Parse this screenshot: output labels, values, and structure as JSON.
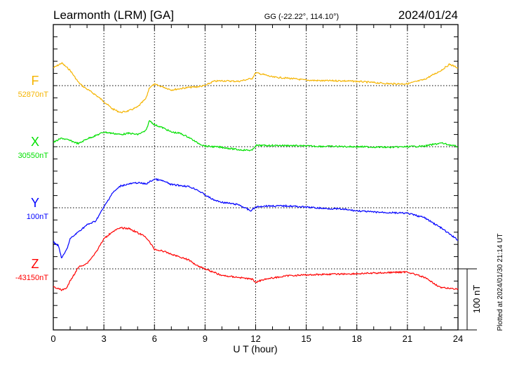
{
  "header": {
    "station": "Learmonth (LRM)  [GA]",
    "coords": "GG (-22.22°, 114.10°)",
    "date": "2024/01/24"
  },
  "footer": {
    "plotted": "Plotted at 2024/01/30 21:14 UT",
    "scale_label": "100 nT"
  },
  "chart_data": {
    "type": "line",
    "xlabel": "U T (hour)",
    "xlim": [
      0,
      24
    ],
    "xticks": [
      "0",
      "3",
      "6",
      "9",
      "12",
      "15",
      "18",
      "21",
      "24"
    ],
    "scale_nT": 100,
    "grid": true,
    "series": [
      {
        "name": "F",
        "baseline_label": "52870nT",
        "color": "#f5b400",
        "x": [
          0,
          0.5,
          1,
          1.5,
          1.8,
          2.5,
          3,
          3.5,
          4,
          4.5,
          5,
          5.5,
          5.7,
          6,
          6.5,
          7,
          8,
          8.5,
          9,
          9.5,
          10,
          11,
          11.8,
          12,
          12.5,
          13,
          14,
          15,
          16,
          17,
          18,
          19,
          20,
          21,
          22,
          23,
          23.5,
          24
        ],
        "y": [
          29,
          37,
          25,
          5,
          -2,
          -15,
          -26,
          -38,
          -44,
          -41,
          -35,
          -21,
          -3,
          2,
          -2,
          -7,
          -3,
          -2,
          0,
          7,
          8,
          7,
          12,
          21,
          18,
          14,
          12,
          9,
          8,
          8,
          7,
          5,
          3,
          3,
          10,
          25,
          35,
          29
        ]
      },
      {
        "name": "X",
        "baseline_label": "30550nT",
        "color": "#00e000",
        "x": [
          0,
          0.5,
          1,
          1.5,
          2,
          2.5,
          3,
          3.5,
          4,
          4.5,
          5,
          5.5,
          5.7,
          6,
          6.5,
          7,
          7.5,
          8,
          8.5,
          9,
          10,
          11,
          11.8,
          12,
          13,
          14,
          15,
          18,
          20,
          22,
          23,
          24
        ],
        "y": [
          7,
          14,
          10,
          5,
          13,
          18,
          24,
          22,
          20,
          22,
          20,
          26,
          43,
          36,
          31,
          24,
          22,
          16,
          7,
          1,
          -1,
          -5,
          -6,
          2,
          2,
          2,
          1,
          0,
          -1,
          1,
          6,
          0
        ]
      },
      {
        "name": "Y",
        "baseline_label": "100nT",
        "color": "#0000ff",
        "x": [
          0,
          0.3,
          0.5,
          0.8,
          1,
          1.5,
          2,
          2.5,
          3,
          3.5,
          4,
          4.5,
          5,
          5.5,
          6,
          6.5,
          7,
          8,
          8.5,
          9,
          9.5,
          10,
          11,
          11.7,
          12,
          12.5,
          14,
          15,
          16,
          17,
          18,
          19,
          20,
          21,
          22,
          23,
          24
        ],
        "y": [
          -56,
          -62,
          -83,
          -68,
          -51,
          -39,
          -28,
          -22,
          1,
          24,
          36,
          39,
          41,
          39,
          47,
          44,
          38,
          35,
          30,
          21,
          13,
          9,
          5,
          -5,
          1,
          3,
          3,
          1,
          -1,
          -2,
          -5,
          -7,
          -8,
          -9,
          -16,
          -33,
          -53
        ]
      },
      {
        "name": "Z",
        "baseline_label": "-43150nT",
        "color": "#ff0000",
        "x": [
          0,
          0.5,
          0.8,
          1,
          1.5,
          2,
          2.5,
          3,
          3.5,
          4,
          4.5,
          5,
          5.5,
          6,
          6.5,
          7,
          8,
          8.5,
          9,
          10,
          11,
          11.8,
          12,
          12.5,
          14,
          15,
          16,
          18,
          20,
          21,
          22,
          23,
          24
        ],
        "y": [
          -29,
          -35,
          -31,
          -20,
          3,
          9,
          26,
          49,
          61,
          67,
          66,
          59,
          52,
          32,
          29,
          24,
          15,
          6,
          0,
          -11,
          -14,
          -17,
          -22,
          -17,
          -11,
          -10,
          -9,
          -8,
          -6,
          -5,
          -14,
          -31,
          -33
        ]
      }
    ]
  }
}
